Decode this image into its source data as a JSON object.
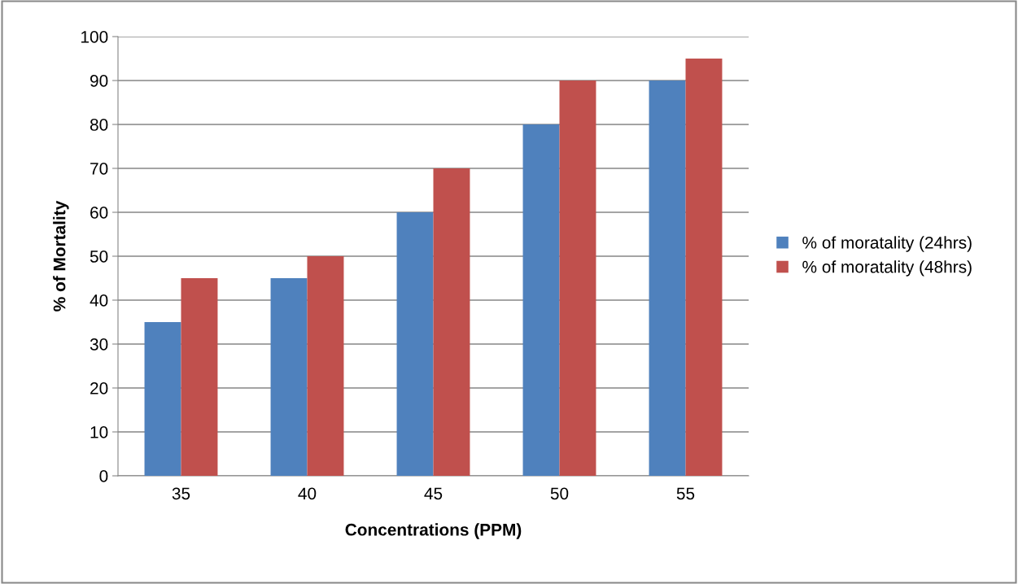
{
  "chart_data": {
    "type": "bar",
    "xlabel": "Concentrations (PPM)",
    "ylabel": "% of Mortality",
    "categories": [
      "35",
      "40",
      "45",
      "50",
      "55"
    ],
    "series": [
      {
        "name": "% of moratality (24hrs)",
        "color": "#4f81bd",
        "values": [
          35,
          45,
          60,
          80,
          90
        ]
      },
      {
        "name": "% of moratality (48hrs)",
        "color": "#c0504d",
        "values": [
          45,
          50,
          70,
          90,
          95
        ]
      }
    ],
    "ylim": [
      0,
      100
    ],
    "yticks": [
      0,
      10,
      20,
      30,
      40,
      50,
      60,
      70,
      80,
      90,
      100
    ],
    "grid": "y",
    "legend": "right"
  }
}
